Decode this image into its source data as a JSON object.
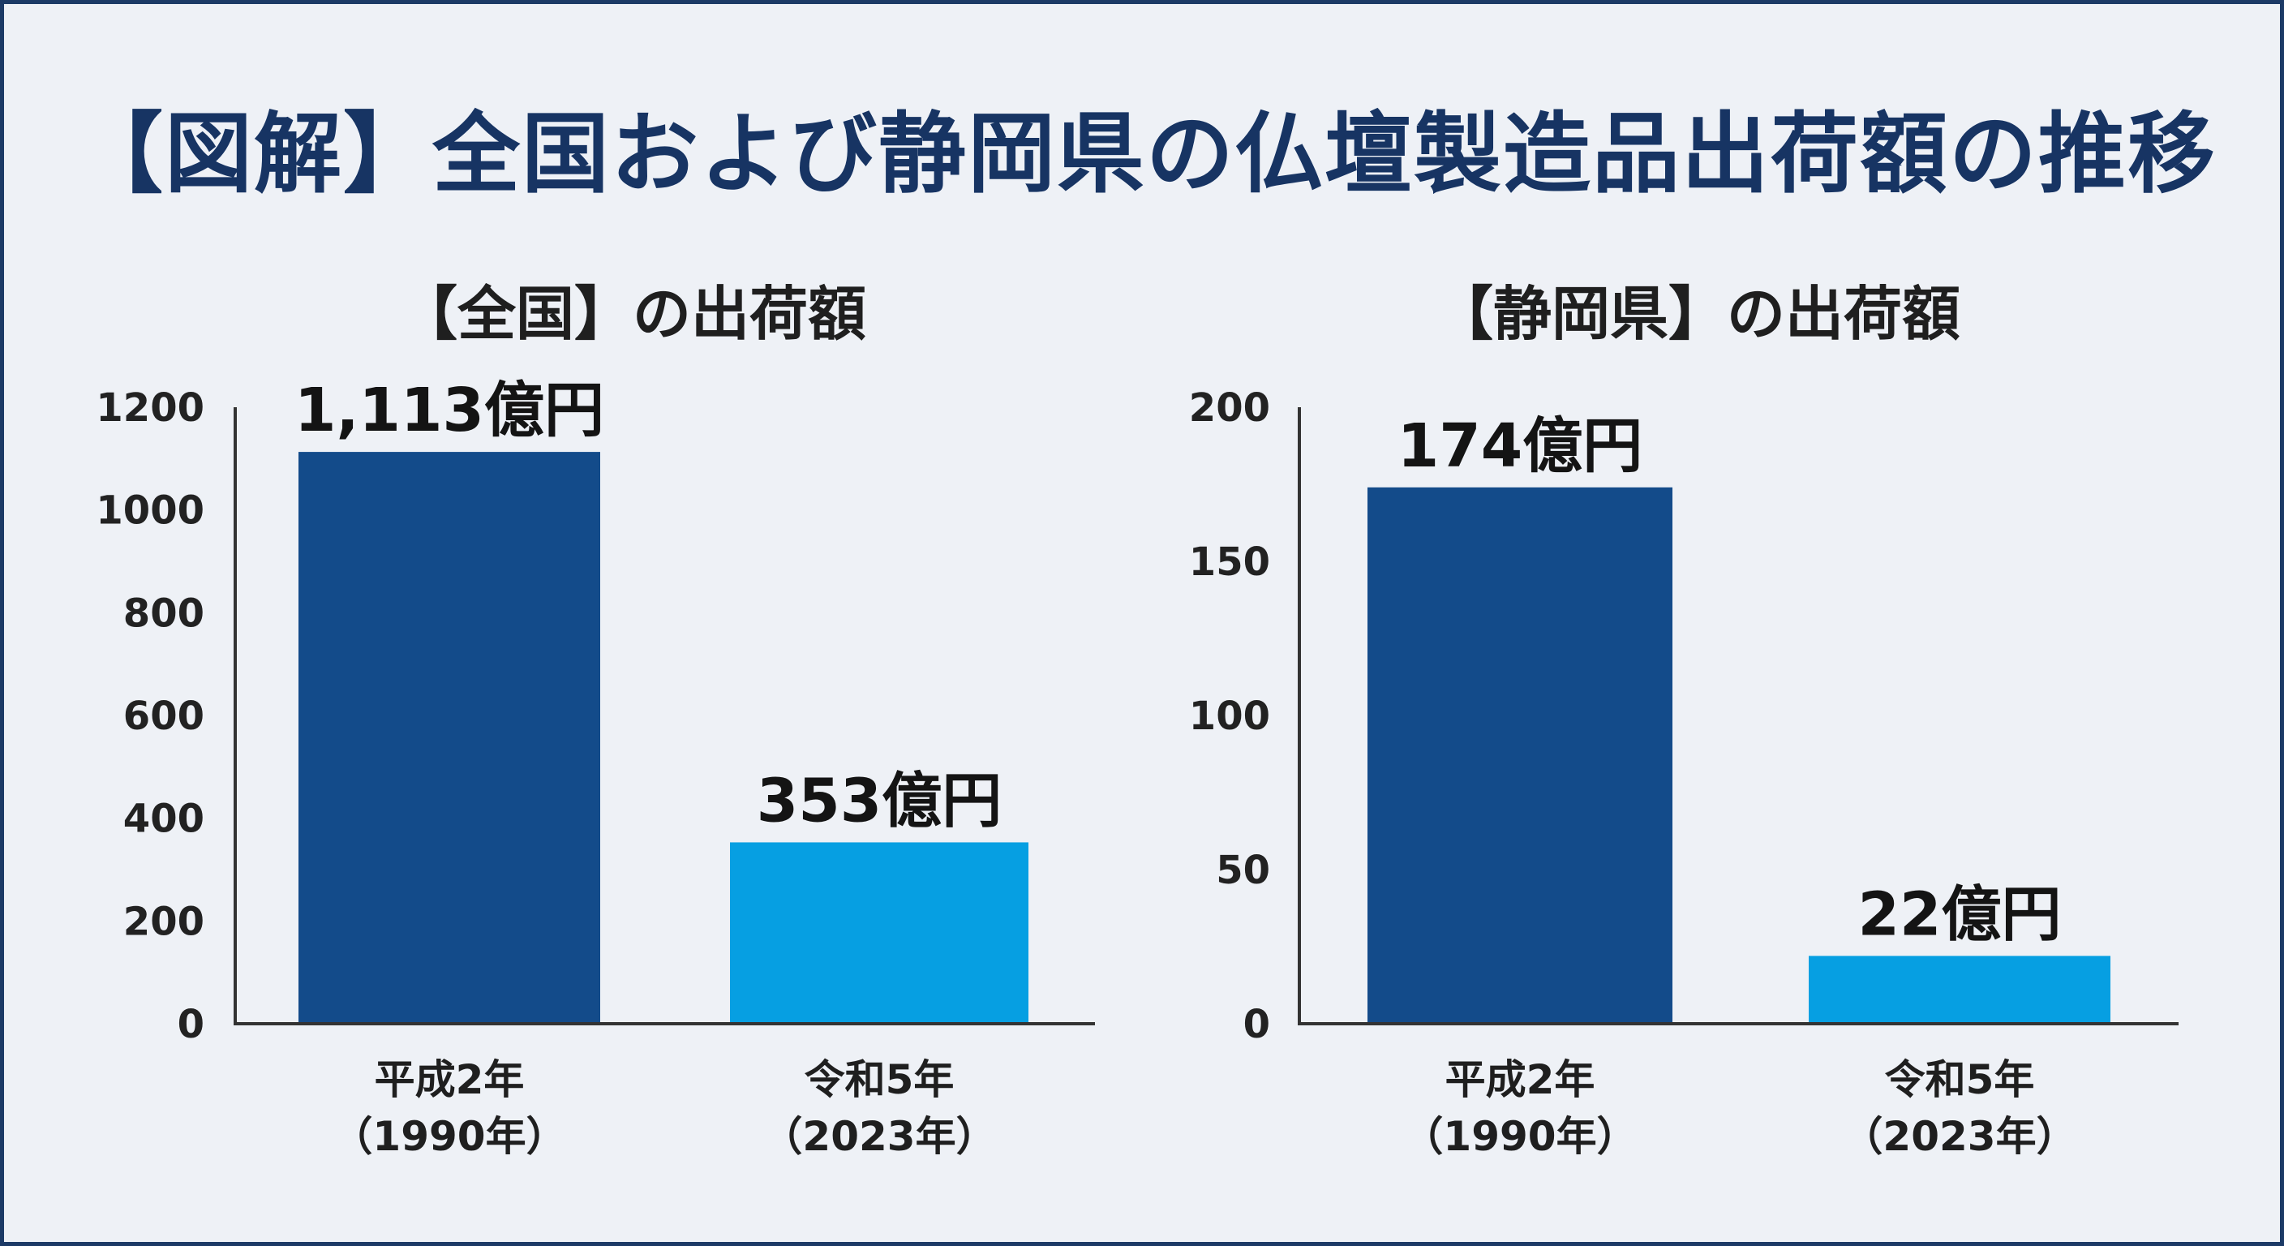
{
  "title": "【図解】全国および静岡県の仏壇製造品出荷額の推移",
  "colors": {
    "bar_primary": "#134b8a",
    "bar_secondary": "#069fe2",
    "title": "#173463",
    "background": "#eef1f6",
    "frame": "#1c3a66"
  },
  "chart_data": [
    {
      "type": "bar",
      "title": "【全国】の出荷額",
      "categories": [
        [
          "平成2年",
          "（1990年）"
        ],
        [
          "令和5年",
          "（2023年）"
        ]
      ],
      "values": [
        1113,
        353
      ],
      "value_labels": [
        "1,113億円",
        "353億円"
      ],
      "unit": "億円",
      "ylim": [
        0,
        1200
      ],
      "yticks": [
        0,
        200,
        400,
        600,
        800,
        1000,
        1200
      ],
      "grid": false,
      "legend": "none"
    },
    {
      "type": "bar",
      "title": "【静岡県】の出荷額",
      "categories": [
        [
          "平成2年",
          "（1990年）"
        ],
        [
          "令和5年",
          "（2023年）"
        ]
      ],
      "values": [
        174,
        22
      ],
      "value_labels": [
        "174億円",
        "22億円"
      ],
      "unit": "億円",
      "ylim": [
        0,
        200
      ],
      "yticks": [
        0,
        50,
        100,
        150,
        200
      ],
      "grid": false,
      "legend": "none"
    }
  ]
}
